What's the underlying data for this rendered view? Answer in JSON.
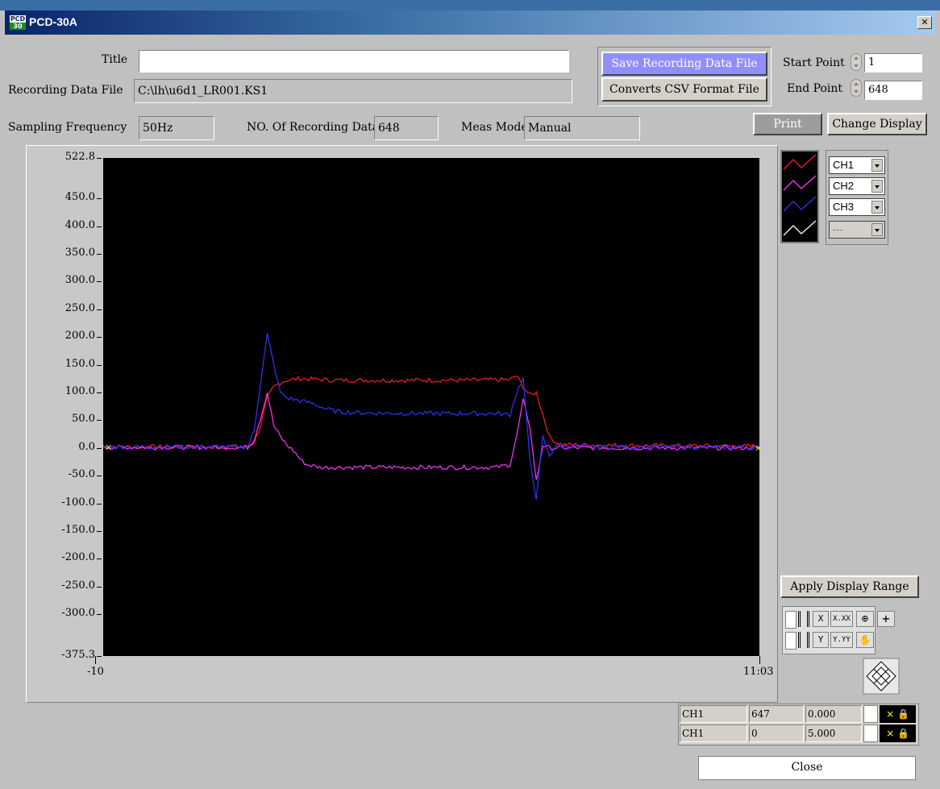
{
  "window": {
    "title": "PCD-30A",
    "close_glyph": "✕",
    "icon_top": "PCD",
    "icon_bottom": "30"
  },
  "form": {
    "title_label": "Title",
    "title_value": "",
    "file_label": "Recording Data File",
    "file_value": "C:\\lh\\u6d1_LR001.KS1",
    "freq_label": "Sampling Frequency",
    "freq_value": "50Hz",
    "count_label": "NO. Of Recording Data",
    "count_value": "648",
    "mode_label": "Meas Mode",
    "mode_value": "Manual"
  },
  "buttons": {
    "save": "Save Recording Data File",
    "csv": "Converts CSV Format File",
    "print": "Print",
    "change_display": "Change Display",
    "apply_range": "Apply Display Range",
    "close": "Close"
  },
  "range": {
    "start_label": "Start Point",
    "start_value": "1",
    "end_label": "End Point",
    "end_value": "648"
  },
  "channels": [
    {
      "name": "CH1",
      "color": "#ff1a1a"
    },
    {
      "name": "CH2",
      "color": "#ff33ff"
    },
    {
      "name": "CH3",
      "color": "#3333ff"
    },
    {
      "name": "---",
      "color": "#ffffff"
    }
  ],
  "cursors": [
    {
      "channel": "CH1",
      "index": "647",
      "value": "0.000"
    },
    {
      "channel": "CH1",
      "index": "0",
      "value": "5.000"
    }
  ],
  "tools": {
    "fmt_x": "X.XX",
    "fmt_y": "Y.YY",
    "axis_x": "X",
    "axis_y": "Y",
    "plus": "+",
    "hand": "✋",
    "zoom": "⊕"
  },
  "chart_data": {
    "type": "line",
    "ylim": [
      -375.3,
      522.8
    ],
    "xlim": [
      0,
      100
    ],
    "y_ticks": [
      "522.8",
      "450.0",
      "400.0",
      "350.0",
      "300.0",
      "250.0",
      "200.0",
      "150.0",
      "100.0",
      "50.0",
      "0.0",
      "-50.0",
      "-100.0",
      "-150.0",
      "-200.0",
      "-250.0",
      "-300.0",
      "-375.3"
    ],
    "x_ticks": [
      "-10",
      "11:03"
    ],
    "series": [
      {
        "color": "#ff1a1a",
        "x": [
          0,
          22,
          23,
          24,
          25,
          26,
          27,
          28,
          30,
          35,
          45,
          55,
          62,
          63,
          64,
          65,
          66,
          67,
          68,
          69,
          70,
          75,
          85,
          100
        ],
        "y": [
          2,
          2,
          10,
          40,
          90,
          110,
          118,
          122,
          125,
          122,
          122,
          122,
          123,
          130,
          110,
          95,
          100,
          60,
          20,
          10,
          6,
          5,
          4,
          3
        ]
      },
      {
        "color": "#ff33ff",
        "x": [
          0,
          22,
          23,
          24,
          25,
          26,
          27,
          28,
          29,
          30,
          31,
          33,
          40,
          50,
          60,
          62,
          63,
          64,
          65,
          66,
          67,
          68,
          69,
          70,
          75,
          100
        ],
        "y": [
          1,
          1,
          15,
          55,
          100,
          40,
          20,
          5,
          -5,
          -20,
          -30,
          -35,
          -35,
          -35,
          -35,
          -30,
          20,
          85,
          40,
          -60,
          5,
          0,
          0,
          0,
          0,
          0
        ]
      },
      {
        "color": "#3333ff",
        "x": [
          0,
          22,
          23,
          24,
          25,
          26,
          27,
          28,
          30,
          32,
          34,
          36,
          40,
          50,
          60,
          62,
          63,
          64,
          65,
          66,
          67,
          68,
          69,
          70,
          75,
          100
        ],
        "y": [
          2,
          2,
          30,
          120,
          205,
          150,
          100,
          90,
          85,
          80,
          70,
          65,
          63,
          62,
          62,
          60,
          100,
          125,
          -20,
          -90,
          20,
          -15,
          5,
          3,
          2,
          1
        ]
      }
    ]
  }
}
